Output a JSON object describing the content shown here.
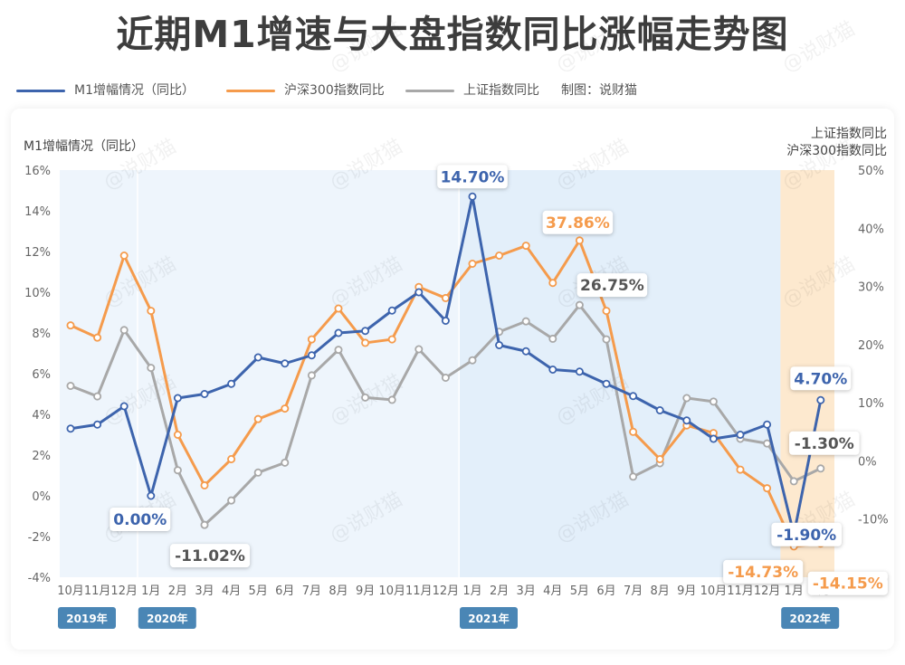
{
  "title": "近期M1增速与大盘指数同比涨幅走势图",
  "legend": [
    {
      "label": "M1增幅情况（同比）",
      "color": "#3d64ad"
    },
    {
      "label": "沪深300指数同比",
      "color": "#f59b4c"
    },
    {
      "label": "上证指数同比",
      "color": "#a8a8a8"
    }
  ],
  "credit": "制图：说财猫",
  "watermark": "@说财猫",
  "chart_data": {
    "type": "line",
    "left_axis_title": "M1增幅情况（同比）",
    "right_axis_title_1": "上证指数同比",
    "right_axis_title_2": "沪深300指数同比",
    "left_ylim": [
      -4,
      16
    ],
    "left_ticks": [
      "16%",
      "14%",
      "12%",
      "10%",
      "8%",
      "6%",
      "4%",
      "2%",
      "0%",
      "-2%",
      "-4%"
    ],
    "right_ylim": [
      -20,
      50
    ],
    "right_ticks": [
      "50%",
      "40%",
      "30%",
      "20%",
      "10%",
      "0%",
      "-10%",
      "-20%"
    ],
    "categories": [
      "10月",
      "11月",
      "12月",
      "1月",
      "2月",
      "3月",
      "4月",
      "5月",
      "6月",
      "7月",
      "8月",
      "9月",
      "10月",
      "11月",
      "12月",
      "1月",
      "2月",
      "3月",
      "4月",
      "5月",
      "6月",
      "7月",
      "8月",
      "9月",
      "10月",
      "11月",
      "12月",
      "1月",
      "2月"
    ],
    "years": [
      {
        "label": "2019年",
        "start_index": 0
      },
      {
        "label": "2020年",
        "start_index": 3
      },
      {
        "label": "2021年",
        "start_index": 15
      },
      {
        "label": "2022年",
        "start_index": 27
      }
    ],
    "series": [
      {
        "name": "M1增幅情况（同比）",
        "axis": "left",
        "color": "#3d64ad",
        "values": [
          3.3,
          3.5,
          4.4,
          0.0,
          4.8,
          5.0,
          5.5,
          6.8,
          6.5,
          6.9,
          8.0,
          8.1,
          9.1,
          10.0,
          8.6,
          14.7,
          7.4,
          7.1,
          6.2,
          6.1,
          5.5,
          4.9,
          4.2,
          3.7,
          2.8,
          3.0,
          3.5,
          -1.9,
          4.7
        ]
      },
      {
        "name": "沪深300指数同比",
        "axis": "right",
        "color": "#f59b4c",
        "values": [
          23.3,
          21.2,
          35.3,
          25.8,
          4.5,
          -4.2,
          0.3,
          7.2,
          9.0,
          20.9,
          26.2,
          20.3,
          20.9,
          29.9,
          28.0,
          33.9,
          35.3,
          37.0,
          30.6,
          37.9,
          25.8,
          5.0,
          0.3,
          6.1,
          4.8,
          -1.5,
          -4.7,
          -14.7,
          -14.2
        ]
      },
      {
        "name": "上证指数同比",
        "axis": "right",
        "color": "#a8a8a8",
        "values": [
          12.9,
          11.1,
          22.5,
          16.0,
          -1.6,
          -11.0,
          -6.8,
          -2.0,
          -0.3,
          14.7,
          19.1,
          10.9,
          10.5,
          19.2,
          14.3,
          17.3,
          22.2,
          24.0,
          21.0,
          26.8,
          20.9,
          -2.7,
          -0.4,
          10.8,
          10.2,
          3.8,
          3.0,
          -3.5,
          -1.3
        ]
      }
    ],
    "callouts": [
      {
        "text": "0.00%",
        "series": 0,
        "index": 3,
        "color": "#3d64ad"
      },
      {
        "text": "-11.02%",
        "series": 2,
        "index": 5,
        "color": "#555555"
      },
      {
        "text": "14.70%",
        "series": 0,
        "index": 15,
        "color": "#3d64ad"
      },
      {
        "text": "37.86%",
        "series": 1,
        "index": 19,
        "color": "#f59b4c"
      },
      {
        "text": "26.75%",
        "series": 2,
        "index": 19,
        "color": "#555555"
      },
      {
        "text": "4.70%",
        "series": 0,
        "index": 28,
        "color": "#3d64ad"
      },
      {
        "text": "-1.30%",
        "series": 2,
        "index": 28,
        "color": "#555555"
      },
      {
        "text": "-1.90%",
        "series": 0,
        "index": 27,
        "color": "#3d64ad"
      },
      {
        "text": "-14.73%",
        "series": 1,
        "index": 27,
        "color": "#f59b4c"
      },
      {
        "text": "-14.15%",
        "series": 1,
        "index": 28,
        "color": "#f59b4c"
      }
    ],
    "highlight_colors": {
      "early": "#eef5fc",
      "y2021": "#e3effa",
      "y2022": "#fde9cf"
    },
    "year_badge_color": "#4a86b5"
  }
}
